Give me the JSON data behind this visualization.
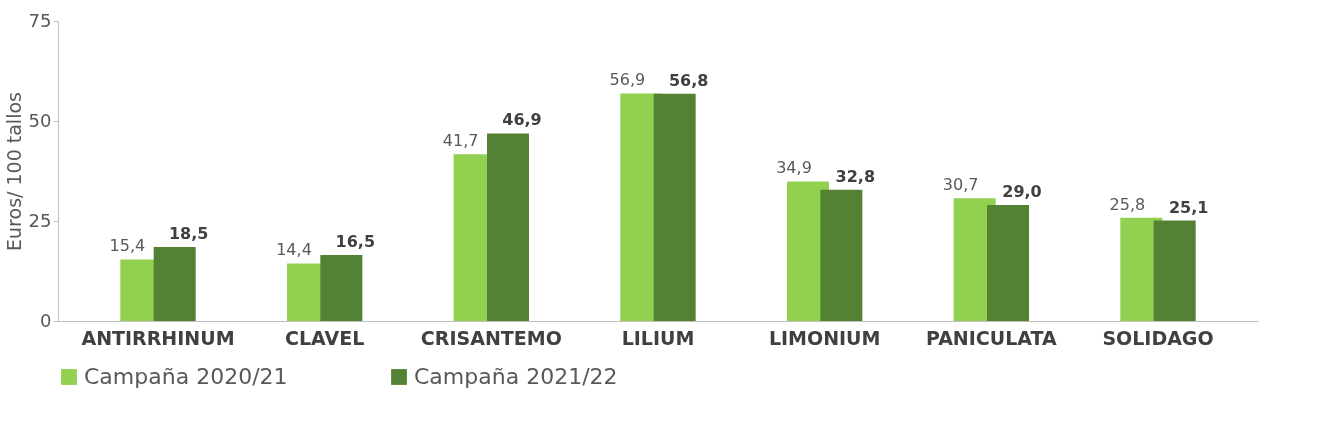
{
  "chart_data": {
    "type": "bar",
    "ylabel": "Euros/ 100 tallos",
    "categories": [
      "ANTIRRHINUM",
      "CLAVEL",
      "CRISANTEMO",
      "LILIUM",
      "LIMONIUM",
      "PANICULATA",
      "SOLIDAGO"
    ],
    "series": [
      {
        "name": "Campaña 2020/21",
        "color": "#92d050",
        "values": [
          15.4,
          14.4,
          41.7,
          56.9,
          34.9,
          30.7,
          25.8
        ],
        "value_labels": [
          "15,4",
          "14,4",
          "41,7",
          "56,9",
          "34,9",
          "30,7",
          "25,8"
        ]
      },
      {
        "name": "Campaña 2021/22",
        "color": "#548235",
        "values": [
          18.5,
          16.5,
          46.9,
          56.8,
          32.8,
          29.0,
          25.1
        ],
        "value_labels": [
          "18,5",
          "16,5",
          "46,9",
          "56,8",
          "32,8",
          "29,0",
          "25,1"
        ]
      }
    ],
    "ylim": [
      0,
      75
    ],
    "yticks": [
      0,
      25,
      50,
      75
    ],
    "grid": false,
    "legend": "bottom"
  }
}
